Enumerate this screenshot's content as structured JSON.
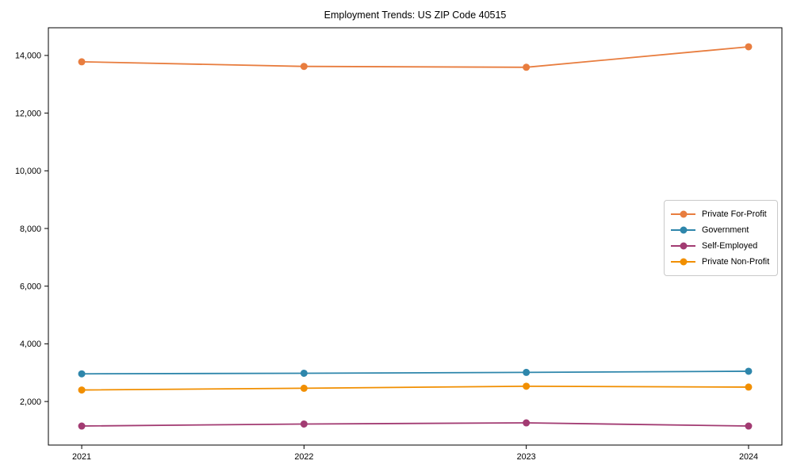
{
  "title": "Employment Trends: US ZIP Code 40515",
  "chart_data": {
    "type": "line",
    "title": "Employment Trends: US ZIP Code 40515",
    "x": [
      2021,
      2022,
      2023,
      2024
    ],
    "x_tick_labels": [
      "2021",
      "2022",
      "2023",
      "2024"
    ],
    "series": [
      {
        "name": "Private For-Profit",
        "color": "#E87D3F",
        "values": [
          13780,
          13620,
          13590,
          14300
        ]
      },
      {
        "name": "Government",
        "color": "#2E86AB",
        "values": [
          2960,
          2980,
          3010,
          3050
        ]
      },
      {
        "name": "Self-Employed",
        "color": "#A23B72",
        "values": [
          1150,
          1220,
          1260,
          1150
        ]
      },
      {
        "name": "Private Non-Profit",
        "color": "#F18F01",
        "values": [
          2400,
          2460,
          2530,
          2500
        ]
      }
    ],
    "xlabel": "",
    "ylabel": "",
    "xlim": [
      2020.85,
      2024.15
    ],
    "ylim": [
      490,
      14960
    ],
    "yticks": [
      2000,
      4000,
      6000,
      8000,
      10000,
      12000,
      14000
    ],
    "ytick_labels": [
      "2,000",
      "4,000",
      "6,000",
      "8,000",
      "10,000",
      "12,000",
      "14,000"
    ],
    "grid": false,
    "legend_position": "center-right",
    "marker": "circle",
    "axis_color": "#000000"
  }
}
